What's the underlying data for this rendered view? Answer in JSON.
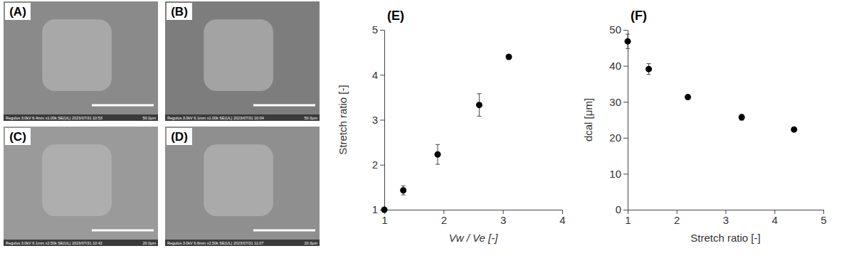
{
  "images": [
    {
      "label": "(A)",
      "info": "Regulus 3.0kV 6.4mm x1.00k SE(UL) 2023/07/31 10:53",
      "scale": "50.0μm"
    },
    {
      "label": "(B)",
      "info": "Regulus 3.0kV 6.1mm x1.00k SE(UL) 2023/07/31 10:04",
      "scale": "50.0μm"
    },
    {
      "label": "(C)",
      "info": "Regulus 3.0kV 6.1mm x2.50k SE(UL) 2023/07/31 10:42",
      "scale": "20.0μm"
    },
    {
      "label": "(D)",
      "info": "Regulus 3.0kV 6.6mm x2.50k SE(UL) 2023/07/31 11:07",
      "scale": "20.0μm"
    }
  ],
  "chart_data": [
    {
      "type": "scatter",
      "title": "(E)",
      "x_label": "Vw / Ve [-]",
      "y_label": "Stretch ratio [-]",
      "x": [
        1,
        1.32,
        1.9,
        2.6,
        3.1
      ],
      "series": [
        {
          "name": "Stretch ratio",
          "color": "#000000",
          "marker": "circle",
          "values": [
            1.0,
            1.43,
            2.23,
            3.33,
            4.4
          ],
          "errors": [
            0.02,
            0.1,
            0.22,
            0.25,
            0.02
          ]
        }
      ],
      "xlim": [
        1,
        4
      ],
      "xticks": [
        1,
        2,
        3,
        4
      ],
      "ylim": [
        1,
        5
      ],
      "yticks": [
        1,
        2,
        3,
        4,
        5
      ],
      "grid": false
    },
    {
      "type": "scatter",
      "title": "(F)",
      "x_label": "Stretch ratio [-]",
      "y_label": "dcal [μm]",
      "x": [
        1,
        1.43,
        2.23,
        3.33,
        4.4
      ],
      "series": [
        {
          "name": "dcal",
          "color": "#000000",
          "marker": "circle",
          "values": [
            46.8,
            39.1,
            31.3,
            25.7,
            22.3
          ],
          "errors": [
            2.0,
            1.5,
            0.3,
            0.8,
            0.5
          ]
        }
      ],
      "xlim": [
        1,
        5
      ],
      "xticks": [
        1,
        2,
        3,
        4,
        5
      ],
      "ylim": [
        0,
        50
      ],
      "yticks": [
        0,
        10,
        20,
        30,
        40,
        50
      ],
      "grid": false
    }
  ]
}
